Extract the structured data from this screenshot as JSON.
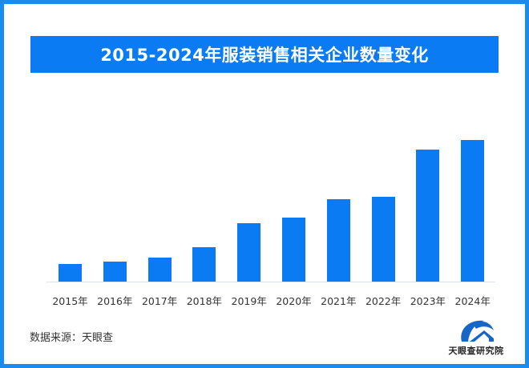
{
  "title": "2015-2024年服装销售相关企业数量变化",
  "source": "数据来源：天眼查",
  "logo": {
    "icon": "tianyancha-logo-icon",
    "text": "天眼查研究院"
  },
  "colors": {
    "bar": "#0a7bf2",
    "title_bg": "#0a7bf2",
    "border": "#1a8cf0",
    "axis": "#dde3ea"
  },
  "chart_data": {
    "type": "bar",
    "title": "2015-2024年服装销售相关企业数量变化",
    "categories": [
      "2015年",
      "2016年",
      "2017年",
      "2018年",
      "2019年",
      "2020年",
      "2021年",
      "2022年",
      "2023年",
      "2024年"
    ],
    "values": [
      22,
      25,
      30,
      43,
      73,
      80,
      103,
      106,
      165,
      177
    ],
    "value_note": "relative bar heights (px); y-axis unlabeled",
    "xlabel": "",
    "ylabel": "",
    "ylim": [
      0,
      212
    ],
    "grid": false,
    "legend": null
  }
}
